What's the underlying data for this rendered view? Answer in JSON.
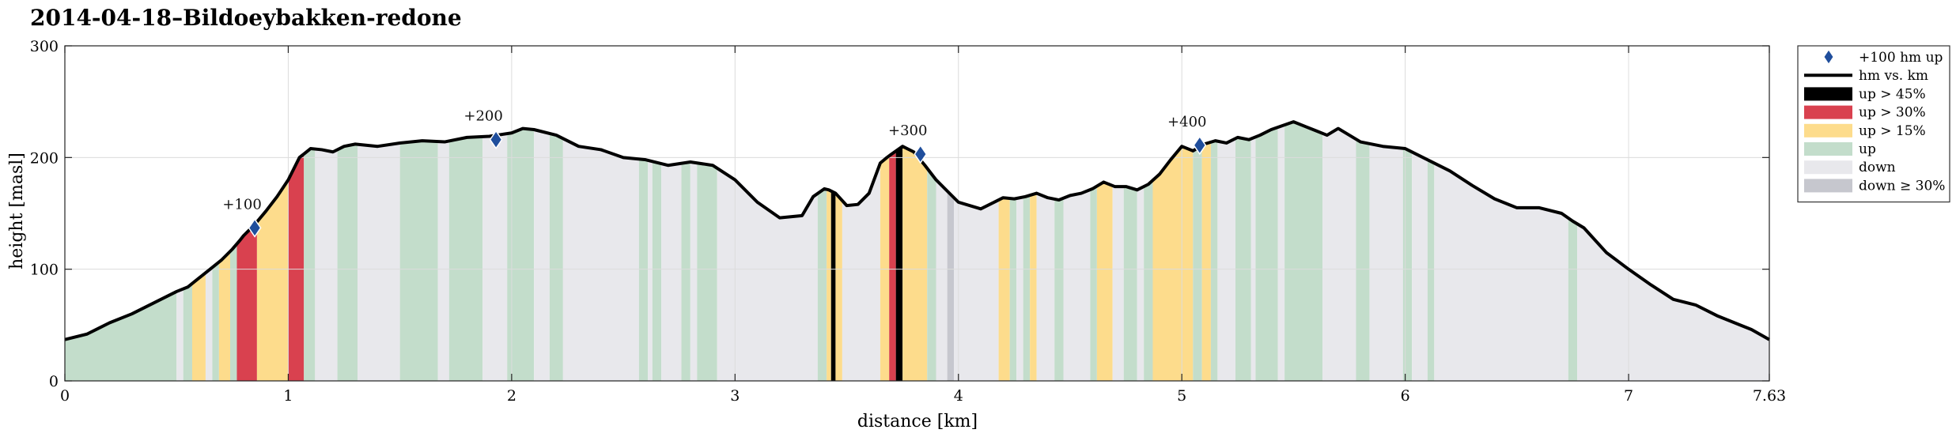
{
  "chart_data": {
    "type": "area",
    "title": "2014-04-18–Bildoeybakken-redone",
    "xlabel": "distance [km]",
    "ylabel": "height [masl]",
    "xlim": [
      0,
      7.63
    ],
    "ylim": [
      0,
      300
    ],
    "xticks": [
      0,
      1,
      2,
      3,
      4,
      5,
      6,
      7,
      7.63
    ],
    "xtick_labels": [
      "0",
      "1",
      "2",
      "3",
      "4",
      "5",
      "6",
      "7",
      "7.63"
    ],
    "yticks": [
      0,
      100,
      200,
      300
    ],
    "ytick_labels": [
      "0",
      "100",
      "200",
      "300"
    ],
    "grid": true,
    "legend_position": "outside-right",
    "colors": {
      "line": "#000000",
      "marker": "#1f4e9c",
      "up_45": "#000000",
      "up_30": "#d9414f",
      "up_15": "#fddc8c",
      "up": "#c3ddcb",
      "down": "#e8e8ec",
      "down_30": "#c6c7ce",
      "grid": "#dcdcdc"
    },
    "legend": [
      {
        "key": "marker",
        "label": "+100 hm up",
        "symbol": "diamond"
      },
      {
        "key": "line",
        "label": "hm vs. km",
        "symbol": "line"
      },
      {
        "key": "up_45",
        "label": "up > 45%",
        "symbol": "patch"
      },
      {
        "key": "up_30",
        "label": "up > 30%",
        "symbol": "patch"
      },
      {
        "key": "up_15",
        "label": "up > 15%",
        "symbol": "patch"
      },
      {
        "key": "up",
        "label": "up",
        "symbol": "patch"
      },
      {
        "key": "down",
        "label": "down",
        "symbol": "patch"
      },
      {
        "key": "down_30",
        "label": "down ≥ 30%",
        "symbol": "patch"
      }
    ],
    "series": [
      {
        "x": [
          0,
          0.1,
          0.2,
          0.3,
          0.4,
          0.5,
          0.55,
          0.6,
          0.65,
          0.7,
          0.75,
          0.78,
          0.8,
          0.85,
          0.9,
          0.95,
          1.0,
          1.05,
          1.1,
          1.15,
          1.2,
          1.25,
          1.3,
          1.4,
          1.5,
          1.6,
          1.7,
          1.8,
          1.9,
          2.0,
          2.05,
          2.1,
          2.2,
          2.3,
          2.4,
          2.5,
          2.6,
          2.7,
          2.8,
          2.9,
          3.0,
          3.1,
          3.2,
          3.3,
          3.35,
          3.4,
          3.42,
          3.45,
          3.5,
          3.55,
          3.6,
          3.65,
          3.68,
          3.7,
          3.75,
          3.8,
          3.85,
          3.9,
          3.95,
          4.0,
          4.1,
          4.2,
          4.25,
          4.3,
          4.35,
          4.4,
          4.45,
          4.5,
          4.55,
          4.6,
          4.65,
          4.7,
          4.75,
          4.8,
          4.85,
          4.9,
          4.95,
          5.0,
          5.05,
          5.1,
          5.15,
          5.2,
          5.25,
          5.3,
          5.35,
          5.4,
          5.5,
          5.6,
          5.65,
          5.7,
          5.8,
          5.9,
          6.0,
          6.1,
          6.2,
          6.3,
          6.4,
          6.5,
          6.6,
          6.7,
          6.75,
          6.8,
          6.9,
          7.0,
          7.1,
          7.2,
          7.3,
          7.4,
          7.5,
          7.55,
          7.63
        ],
        "y": [
          37,
          42,
          52,
          60,
          70,
          80,
          84,
          92,
          100,
          108,
          118,
          125,
          130,
          140,
          152,
          165,
          180,
          200,
          208,
          207,
          205,
          210,
          212,
          210,
          213,
          215,
          214,
          218,
          219,
          222,
          226,
          225,
          220,
          210,
          207,
          200,
          198,
          193,
          196,
          193,
          180,
          160,
          146,
          148,
          165,
          172,
          171,
          168,
          157,
          158,
          168,
          195,
          200,
          203,
          210,
          205,
          193,
          180,
          170,
          160,
          154,
          164,
          163,
          165,
          168,
          164,
          162,
          166,
          168,
          172,
          178,
          174,
          174,
          171,
          176,
          185,
          198,
          210,
          206,
          212,
          215,
          213,
          218,
          216,
          220,
          225,
          232,
          224,
          220,
          226,
          214,
          210,
          208,
          198,
          188,
          175,
          163,
          155,
          155,
          150,
          143,
          137,
          115,
          100,
          86,
          73,
          68,
          58,
          50,
          46,
          37
        ]
      }
    ],
    "markers": [
      {
        "x": 0.85,
        "y": 137,
        "label": "+100"
      },
      {
        "x": 1.93,
        "y": 216,
        "label": "+200"
      },
      {
        "x": 3.83,
        "y": 203,
        "label": "+300"
      },
      {
        "x": 5.08,
        "y": 211,
        "label": "+400"
      }
    ],
    "bands": [
      {
        "x0": 0,
        "x1": 0.5,
        "class": "up"
      },
      {
        "x0": 0.5,
        "x1": 0.53,
        "class": "down"
      },
      {
        "x0": 0.53,
        "x1": 0.57,
        "class": "up"
      },
      {
        "x0": 0.57,
        "x1": 0.63,
        "class": "up_15"
      },
      {
        "x0": 0.63,
        "x1": 0.66,
        "class": "down"
      },
      {
        "x0": 0.66,
        "x1": 0.69,
        "class": "up"
      },
      {
        "x0": 0.69,
        "x1": 0.74,
        "class": "up_15"
      },
      {
        "x0": 0.74,
        "x1": 0.77,
        "class": "up"
      },
      {
        "x0": 0.77,
        "x1": 0.86,
        "class": "up_30"
      },
      {
        "x0": 0.86,
        "x1": 1.0,
        "class": "up_15"
      },
      {
        "x0": 1.0,
        "x1": 1.07,
        "class": "up_30"
      },
      {
        "x0": 1.07,
        "x1": 1.12,
        "class": "up"
      },
      {
        "x0": 1.12,
        "x1": 1.22,
        "class": "down"
      },
      {
        "x0": 1.22,
        "x1": 1.31,
        "class": "up"
      },
      {
        "x0": 1.31,
        "x1": 1.5,
        "class": "down"
      },
      {
        "x0": 1.5,
        "x1": 1.67,
        "class": "up"
      },
      {
        "x0": 1.67,
        "x1": 1.72,
        "class": "down"
      },
      {
        "x0": 1.72,
        "x1": 1.87,
        "class": "up"
      },
      {
        "x0": 1.87,
        "x1": 1.98,
        "class": "down"
      },
      {
        "x0": 1.98,
        "x1": 2.1,
        "class": "up"
      },
      {
        "x0": 2.1,
        "x1": 2.17,
        "class": "down"
      },
      {
        "x0": 2.17,
        "x1": 2.23,
        "class": "up"
      },
      {
        "x0": 2.23,
        "x1": 2.57,
        "class": "down"
      },
      {
        "x0": 2.57,
        "x1": 2.61,
        "class": "up"
      },
      {
        "x0": 2.61,
        "x1": 2.63,
        "class": "down"
      },
      {
        "x0": 2.63,
        "x1": 2.67,
        "class": "up"
      },
      {
        "x0": 2.67,
        "x1": 2.76,
        "class": "down"
      },
      {
        "x0": 2.76,
        "x1": 2.8,
        "class": "up"
      },
      {
        "x0": 2.8,
        "x1": 2.83,
        "class": "down"
      },
      {
        "x0": 2.83,
        "x1": 2.92,
        "class": "up"
      },
      {
        "x0": 2.92,
        "x1": 3.37,
        "class": "down"
      },
      {
        "x0": 3.37,
        "x1": 3.41,
        "class": "up"
      },
      {
        "x0": 3.41,
        "x1": 3.43,
        "class": "up_15"
      },
      {
        "x0": 3.43,
        "x1": 3.45,
        "class": "up_45"
      },
      {
        "x0": 3.45,
        "x1": 3.48,
        "class": "up_15"
      },
      {
        "x0": 3.48,
        "x1": 3.65,
        "class": "down"
      },
      {
        "x0": 3.65,
        "x1": 3.69,
        "class": "up_15"
      },
      {
        "x0": 3.69,
        "x1": 3.72,
        "class": "up_30"
      },
      {
        "x0": 3.72,
        "x1": 3.75,
        "class": "up_45"
      },
      {
        "x0": 3.75,
        "x1": 3.86,
        "class": "up_15"
      },
      {
        "x0": 3.86,
        "x1": 3.9,
        "class": "up"
      },
      {
        "x0": 3.9,
        "x1": 3.95,
        "class": "down"
      },
      {
        "x0": 3.95,
        "x1": 3.98,
        "class": "down_30"
      },
      {
        "x0": 3.98,
        "x1": 4.18,
        "class": "down"
      },
      {
        "x0": 4.18,
        "x1": 4.23,
        "class": "up_15"
      },
      {
        "x0": 4.23,
        "x1": 4.26,
        "class": "up"
      },
      {
        "x0": 4.26,
        "x1": 4.29,
        "class": "down"
      },
      {
        "x0": 4.29,
        "x1": 4.32,
        "class": "up"
      },
      {
        "x0": 4.32,
        "x1": 4.35,
        "class": "up_15"
      },
      {
        "x0": 4.35,
        "x1": 4.43,
        "class": "down"
      },
      {
        "x0": 4.43,
        "x1": 4.47,
        "class": "up"
      },
      {
        "x0": 4.47,
        "x1": 4.59,
        "class": "down"
      },
      {
        "x0": 4.59,
        "x1": 4.62,
        "class": "up"
      },
      {
        "x0": 4.62,
        "x1": 4.69,
        "class": "up_15"
      },
      {
        "x0": 4.69,
        "x1": 4.74,
        "class": "down"
      },
      {
        "x0": 4.74,
        "x1": 4.8,
        "class": "up"
      },
      {
        "x0": 4.8,
        "x1": 4.83,
        "class": "down"
      },
      {
        "x0": 4.83,
        "x1": 4.87,
        "class": "up"
      },
      {
        "x0": 4.87,
        "x1": 5.05,
        "class": "up_15"
      },
      {
        "x0": 5.05,
        "x1": 5.09,
        "class": "up"
      },
      {
        "x0": 5.09,
        "x1": 5.13,
        "class": "up_15"
      },
      {
        "x0": 5.13,
        "x1": 5.16,
        "class": "up"
      },
      {
        "x0": 5.16,
        "x1": 5.24,
        "class": "down"
      },
      {
        "x0": 5.24,
        "x1": 5.31,
        "class": "up"
      },
      {
        "x0": 5.31,
        "x1": 5.33,
        "class": "down"
      },
      {
        "x0": 5.33,
        "x1": 5.43,
        "class": "up"
      },
      {
        "x0": 5.43,
        "x1": 5.46,
        "class": "down"
      },
      {
        "x0": 5.46,
        "x1": 5.63,
        "class": "up"
      },
      {
        "x0": 5.63,
        "x1": 5.78,
        "class": "down"
      },
      {
        "x0": 5.78,
        "x1": 5.84,
        "class": "up"
      },
      {
        "x0": 5.84,
        "x1": 5.99,
        "class": "down"
      },
      {
        "x0": 5.99,
        "x1": 6.03,
        "class": "up"
      },
      {
        "x0": 6.03,
        "x1": 6.1,
        "class": "down"
      },
      {
        "x0": 6.1,
        "x1": 6.13,
        "class": "up"
      },
      {
        "x0": 6.13,
        "x1": 6.73,
        "class": "down"
      },
      {
        "x0": 6.73,
        "x1": 6.77,
        "class": "up"
      },
      {
        "x0": 6.77,
        "x1": 7.63,
        "class": "down"
      }
    ]
  }
}
